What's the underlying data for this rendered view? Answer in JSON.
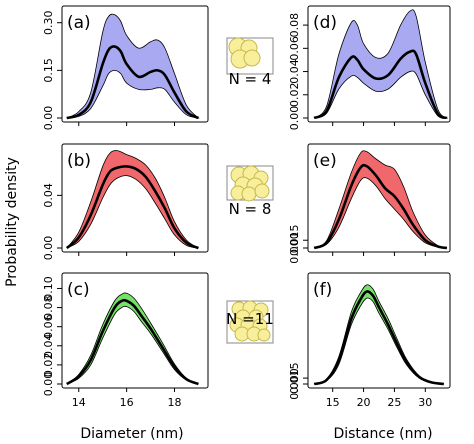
{
  "figure": {
    "ylabel": "Probability density",
    "xlabel_left": "Diameter (nm)",
    "xlabel_right": "Distance (nm)"
  },
  "colors": {
    "blue_band": "#a9a9f2",
    "red_band": "#f0686b",
    "green_band": "#76e06a",
    "mean_line": "#000000",
    "inset_fill": "#f7ef9c",
    "inset_stroke": "#c8b84a"
  },
  "axes": {
    "diameter": {
      "xlim": [
        13.3,
        19.4
      ],
      "ticks": [
        14,
        16,
        18
      ]
    },
    "distance": {
      "xlim": [
        11,
        34
      ],
      "ticks": [
        15,
        20,
        25,
        30
      ]
    }
  },
  "insets": [
    {
      "n_label": "N = 4",
      "icon": "cluster-4-spheres-icon"
    },
    {
      "n_label": "N = 8",
      "icon": "cluster-8-spheres-icon"
    },
    {
      "n_label": "N =11",
      "icon": "cluster-11-spheres-icon"
    }
  ],
  "chart_data": [
    {
      "type": "area",
      "tag": "(a)",
      "band_color": "blue",
      "ylim": [
        0,
        0.34
      ],
      "yticks": [
        "0.00",
        "0.15",
        "0.30"
      ],
      "ytick_values": [
        0,
        0.15,
        0.3
      ],
      "x": [
        13.5,
        14.0,
        14.5,
        15.0,
        15.25,
        15.5,
        15.75,
        16.0,
        16.5,
        17.0,
        17.3,
        17.6,
        18.0,
        18.5,
        19.0
      ],
      "mean": [
        0.0,
        0.01,
        0.05,
        0.17,
        0.215,
        0.225,
        0.21,
        0.17,
        0.13,
        0.145,
        0.15,
        0.135,
        0.08,
        0.02,
        0.0
      ],
      "lower": [
        0.0,
        0.005,
        0.03,
        0.1,
        0.14,
        0.15,
        0.14,
        0.11,
        0.09,
        0.09,
        0.095,
        0.09,
        0.05,
        0.01,
        0.0
      ],
      "upper": [
        0.0,
        0.02,
        0.08,
        0.27,
        0.32,
        0.325,
        0.305,
        0.26,
        0.22,
        0.24,
        0.245,
        0.22,
        0.14,
        0.04,
        0.0
      ]
    },
    {
      "type": "area",
      "tag": "(b)",
      "band_color": "red",
      "ylim": [
        0,
        0.076
      ],
      "yticks": [
        "0.00",
        "0.04"
      ],
      "ytick_values": [
        0,
        0.04
      ],
      "x": [
        13.5,
        14.0,
        14.5,
        15.0,
        15.3,
        15.6,
        16.0,
        16.4,
        16.8,
        17.2,
        17.6,
        18.0,
        18.5,
        19.0
      ],
      "mean": [
        0.0,
        0.008,
        0.025,
        0.048,
        0.058,
        0.061,
        0.062,
        0.06,
        0.054,
        0.043,
        0.03,
        0.015,
        0.004,
        0.0
      ],
      "lower": [
        0.0,
        0.005,
        0.018,
        0.038,
        0.048,
        0.053,
        0.055,
        0.052,
        0.045,
        0.034,
        0.022,
        0.01,
        0.002,
        0.0
      ],
      "upper": [
        0.0,
        0.012,
        0.035,
        0.062,
        0.072,
        0.074,
        0.071,
        0.068,
        0.063,
        0.053,
        0.038,
        0.02,
        0.006,
        0.0
      ]
    },
    {
      "type": "area",
      "tag": "(c)",
      "band_color": "green",
      "ylim": [
        0,
        0.112
      ],
      "yticks": [
        "0.00",
        "0.02",
        "0.04",
        "0.06",
        "0.08",
        "0.10"
      ],
      "ytick_values": [
        0,
        0.02,
        0.04,
        0.06,
        0.08,
        0.1
      ],
      "x": [
        13.5,
        14.0,
        14.5,
        15.0,
        15.5,
        15.8,
        16.0,
        16.3,
        16.6,
        17.0,
        17.5,
        18.0,
        18.5,
        19.0
      ],
      "mean": [
        0.0,
        0.008,
        0.025,
        0.055,
        0.08,
        0.087,
        0.087,
        0.082,
        0.072,
        0.058,
        0.038,
        0.018,
        0.005,
        0.0
      ],
      "lower": [
        0.0,
        0.006,
        0.02,
        0.048,
        0.073,
        0.08,
        0.081,
        0.076,
        0.066,
        0.053,
        0.034,
        0.015,
        0.004,
        0.0
      ],
      "upper": [
        0.0,
        0.01,
        0.03,
        0.062,
        0.087,
        0.094,
        0.095,
        0.09,
        0.08,
        0.064,
        0.043,
        0.021,
        0.006,
        0.0
      ]
    },
    {
      "type": "area",
      "tag": "(d)",
      "band_color": "blue",
      "ylim": [
        0,
        0.093
      ],
      "yticks": [
        "0.00",
        "0.02",
        "0.04",
        "0.06",
        "0.08"
      ],
      "ytick_values": [
        0,
        0.02,
        0.04,
        0.06,
        0.08
      ],
      "x": [
        12.0,
        14.0,
        16.0,
        18.0,
        19.0,
        20.0,
        22.0,
        24.0,
        26.0,
        27.5,
        28.5,
        30.0,
        32.0,
        33.5
      ],
      "mean": [
        0.0,
        0.006,
        0.035,
        0.052,
        0.05,
        0.042,
        0.034,
        0.037,
        0.051,
        0.057,
        0.055,
        0.03,
        0.004,
        0.0
      ],
      "lower": [
        0.0,
        0.004,
        0.025,
        0.036,
        0.035,
        0.03,
        0.023,
        0.025,
        0.035,
        0.04,
        0.038,
        0.02,
        0.002,
        0.0
      ],
      "upper": [
        0.0,
        0.01,
        0.055,
        0.082,
        0.08,
        0.064,
        0.052,
        0.056,
        0.08,
        0.092,
        0.088,
        0.048,
        0.008,
        0.0
      ]
    },
    {
      "type": "area",
      "tag": "(e)",
      "band_color": "red",
      "ylim": [
        0,
        0.193
      ],
      "yticks": [
        "0.000",
        "0.015"
      ],
      "ytick_values": [
        0,
        0.015
      ],
      "x": [
        12.0,
        14.0,
        16.0,
        18.0,
        19.5,
        20.5,
        22.0,
        23.5,
        25.0,
        26.5,
        28.0,
        30.0,
        32.0,
        33.5
      ],
      "mean": [
        0.0,
        0.01,
        0.055,
        0.12,
        0.155,
        0.158,
        0.14,
        0.115,
        0.1,
        0.075,
        0.045,
        0.015,
        0.003,
        0.0
      ],
      "lower": [
        0.0,
        0.007,
        0.04,
        0.095,
        0.13,
        0.135,
        0.12,
        0.095,
        0.075,
        0.055,
        0.032,
        0.01,
        0.002,
        0.0
      ],
      "upper": [
        0.0,
        0.014,
        0.075,
        0.145,
        0.183,
        0.186,
        0.172,
        0.16,
        0.152,
        0.118,
        0.07,
        0.025,
        0.005,
        0.0
      ]
    },
    {
      "type": "area",
      "tag": "(f)",
      "band_color": "green",
      "ylim": [
        0,
        0.272
      ],
      "yticks": [
        "0.000",
        "0.015"
      ],
      "ytick_values": [
        0,
        0.015
      ],
      "x": [
        12.0,
        14.0,
        16.0,
        18.0,
        19.5,
        20.5,
        21.5,
        22.5,
        24.0,
        25.5,
        27.0,
        29.0,
        31.0,
        33.0
      ],
      "mean": [
        0.0,
        0.01,
        0.06,
        0.165,
        0.215,
        0.235,
        0.225,
        0.195,
        0.15,
        0.1,
        0.055,
        0.018,
        0.004,
        0.0
      ],
      "lower": [
        0.0,
        0.008,
        0.05,
        0.15,
        0.198,
        0.218,
        0.21,
        0.18,
        0.138,
        0.09,
        0.048,
        0.015,
        0.003,
        0.0
      ],
      "upper": [
        0.0,
        0.012,
        0.07,
        0.182,
        0.232,
        0.252,
        0.242,
        0.21,
        0.165,
        0.112,
        0.062,
        0.021,
        0.005,
        0.0
      ]
    }
  ]
}
